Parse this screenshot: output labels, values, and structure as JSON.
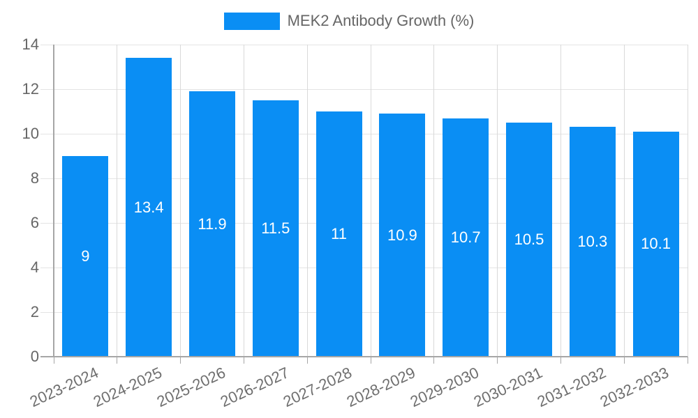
{
  "chart_data": {
    "type": "bar",
    "title": "MEK2 Antibody Growth (%)",
    "categories": [
      "2023-2024",
      "2024-2025",
      "2025-2026",
      "2026-2027",
      "2027-2028",
      "2028-2029",
      "2029-2030",
      "2030-2031",
      "2031-2032",
      "2032-2033"
    ],
    "series": [
      {
        "name": "MEK2 Antibody Growth (%)",
        "values": [
          9,
          13.4,
          11.9,
          11.5,
          11,
          10.9,
          10.7,
          10.5,
          10.3,
          10.1
        ],
        "color": "#0a8ef4"
      }
    ],
    "value_label_position": "inside-center",
    "xlabel": "",
    "ylabel": "",
    "ylim": [
      0,
      14
    ],
    "y_ticks": [
      0,
      2,
      4,
      6,
      8,
      10,
      12,
      14
    ],
    "grid": true,
    "legend_position": "top-center",
    "x_label_rotation_deg": 25,
    "colors": {
      "bar": "#0a8ef4",
      "axis": "#a6a6a6",
      "grid_h": "#e4e4e4",
      "grid_v": "#d9d9d9",
      "y_tick_label": "#666666",
      "x_label": "#6e6e6e",
      "legend_text": "#666666",
      "bar_label": "#ffffff",
      "background": "#ffffff"
    }
  }
}
